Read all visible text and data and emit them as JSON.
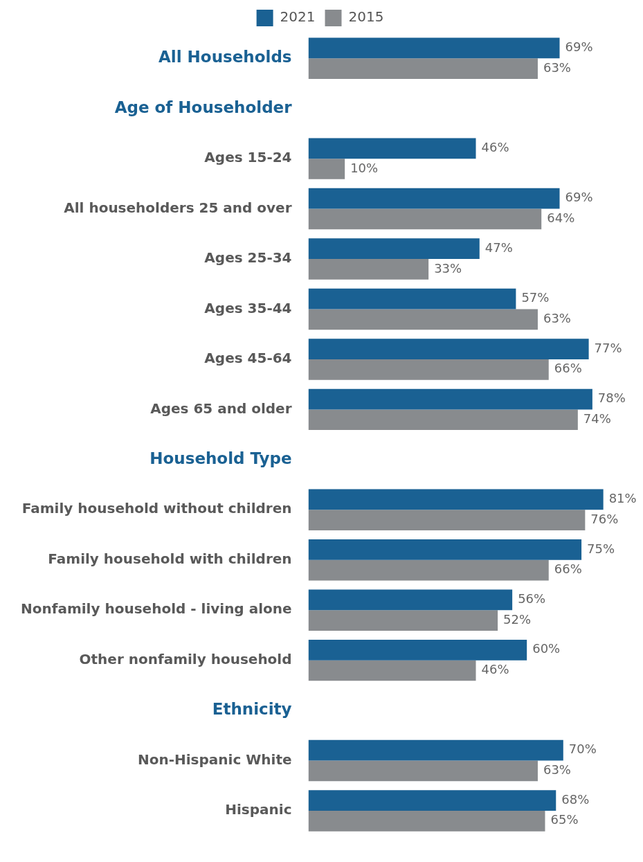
{
  "chart_data": {
    "type": "bar",
    "orientation": "horizontal",
    "categories": [
      "All Households",
      "Age of Householder",
      "Ages 15-24",
      "All householders 25 and over",
      "Ages 25-34",
      "Ages 35-44",
      "Ages 45-64",
      "Ages 65 and older",
      "Household Type",
      "Family household without children",
      "Family household with children",
      "Nonfamily household - living alone",
      "Other nonfamily household",
      "Ethnicity",
      "Non-Hispanic White",
      "Hispanic"
    ],
    "series": [
      {
        "name": "2021",
        "color": "#1a6193",
        "values": [
          69,
          null,
          46,
          69,
          47,
          57,
          77,
          78,
          null,
          81,
          75,
          56,
          60,
          null,
          70,
          68
        ],
        "value_labels": [
          "69%",
          null,
          "46%",
          "69%",
          "47%",
          "57%",
          "77%",
          "78%",
          null,
          "81%",
          "75%",
          "56%",
          "60%",
          null,
          "70%",
          "68%"
        ]
      },
      {
        "name": "2015",
        "color": "#888b8e",
        "values": [
          63,
          null,
          10,
          64,
          33,
          63,
          66,
          74,
          null,
          76,
          66,
          52,
          46,
          null,
          63,
          65
        ],
        "value_labels": [
          "63%",
          null,
          "10%",
          "64%",
          "33%",
          "63%",
          "66%",
          "74%",
          null,
          "76%",
          "66%",
          "52%",
          "46%",
          null,
          "63%",
          "65%"
        ]
      }
    ],
    "legend": "top",
    "tick_labels": "y"
  }
}
